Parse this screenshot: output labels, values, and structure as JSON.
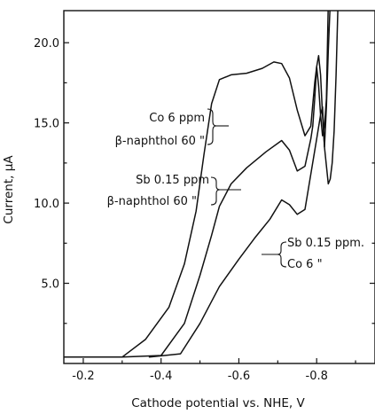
{
  "chart_data": {
    "type": "line",
    "title": "",
    "xlabel": "Cathode potential vs. NHE, V",
    "ylabel": "Current, µA",
    "xlim": [
      -0.15,
      -0.95
    ],
    "ylim": [
      0,
      22
    ],
    "x_ticks": [
      -0.2,
      -0.4,
      -0.6,
      -0.8
    ],
    "x_tick_labels": [
      "-0.2",
      "-0.4",
      "-0.6",
      "-0.8"
    ],
    "y_ticks": [
      5,
      10,
      15,
      20
    ],
    "y_tick_labels": [
      "5.0",
      "10.0",
      "15.0",
      "20.0"
    ],
    "grid": false,
    "legend": "none",
    "series": [
      {
        "name": "Co 6 ppm / β-naphthol 60 ppm",
        "x": [
          -0.15,
          -0.3,
          -0.36,
          -0.42,
          -0.46,
          -0.49,
          -0.51,
          -0.53,
          -0.55,
          -0.58,
          -0.62,
          -0.66,
          -0.69,
          -0.71,
          -0.73,
          -0.75,
          -0.77,
          -0.785,
          -0.795,
          -0.8,
          -0.805,
          -0.81,
          -0.815,
          -0.82,
          -0.825,
          -0.83,
          -0.84,
          -0.85,
          -0.86,
          -0.865
        ],
        "y": [
          0.4,
          0.4,
          1.5,
          3.5,
          6.2,
          9.5,
          13,
          16.2,
          17.7,
          18.0,
          18.1,
          18.4,
          18.8,
          18.7,
          17.8,
          15.8,
          14.2,
          14.8,
          17.5,
          18.5,
          17.3,
          15.5,
          14.2,
          14.8,
          16.5,
          22.5,
          22.5,
          22.5,
          22.5,
          22.5
        ]
      },
      {
        "name": "Sb 0.15 ppm / β-naphthol 60 ppm",
        "x": [
          -0.3,
          -0.4,
          -0.46,
          -0.5,
          -0.53,
          -0.55,
          -0.58,
          -0.62,
          -0.67,
          -0.71,
          -0.73,
          -0.75,
          -0.77,
          -0.785,
          -0.79,
          -0.795,
          -0.8,
          -0.805,
          -0.81,
          -0.815,
          -0.82,
          -0.825,
          -0.83,
          -0.835,
          -0.845,
          -0.855
        ],
        "y": [
          0.4,
          0.5,
          2.5,
          5.5,
          8.0,
          9.8,
          11.2,
          12.2,
          13.2,
          13.9,
          13.3,
          12.0,
          12.3,
          14.0,
          14.8,
          16.5,
          18.5,
          19.2,
          18.0,
          15.5,
          13.5,
          16.0,
          19.5,
          22.5,
          22.5,
          22.5
        ]
      },
      {
        "name": "Sb 0.15 ppm / Co 6 ppm",
        "x": [
          -0.37,
          -0.45,
          -0.5,
          -0.55,
          -0.6,
          -0.64,
          -0.68,
          -0.71,
          -0.73,
          -0.75,
          -0.77,
          -0.785,
          -0.8,
          -0.81,
          -0.815,
          -0.82,
          -0.83,
          -0.835,
          -0.84,
          -0.845,
          -0.85,
          -0.855,
          -0.86,
          -0.865
        ],
        "y": [
          0.4,
          0.6,
          2.5,
          4.8,
          6.5,
          7.8,
          9.0,
          10.2,
          9.9,
          9.3,
          9.6,
          11.8,
          14.0,
          15.5,
          16.0,
          13.5,
          11.2,
          11.5,
          12.5,
          14.5,
          18.0,
          22.5,
          22.5,
          22.5
        ]
      }
    ],
    "annotations": [
      {
        "lines": [
          "Co 6 ppm",
          "β-naphthol 60 \""
        ]
      },
      {
        "lines": [
          "Sb 0.15 ppm",
          "β-naphthol 60 \""
        ]
      },
      {
        "lines": [
          "Sb 0.15 ppm.",
          "Co 6 \""
        ]
      }
    ]
  }
}
